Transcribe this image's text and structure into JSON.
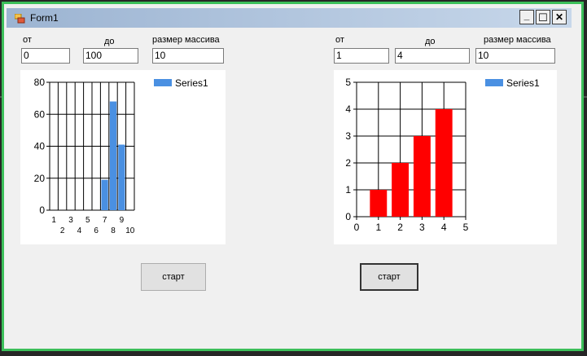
{
  "window": {
    "title": "Form1",
    "minimize_glyph": "_",
    "maximize_glyph": "☐",
    "close_glyph": "✕"
  },
  "left": {
    "from_label": "от",
    "to_label": "до",
    "size_label": "размер массива",
    "from_value": "0",
    "to_value": "100",
    "size_value": "10",
    "start_label": "старт"
  },
  "right": {
    "from_label": "от",
    "to_label": "до",
    "size_label": "размер массива",
    "from_value": "1",
    "to_value": "4",
    "size_value": "10",
    "start_label": "старт"
  },
  "chart_data": [
    {
      "type": "bar",
      "series": [
        {
          "name": "Series1",
          "color": "#4a90e2",
          "points": [
            {
              "x": 7,
              "y": 19
            },
            {
              "x": 8,
              "y": 68
            },
            {
              "x": 9,
              "y": 41
            }
          ]
        }
      ],
      "xlim": [
        1,
        10
      ],
      "ylim": [
        0,
        80
      ],
      "x_ticks_odd": [
        "1",
        "3",
        "5",
        "7",
        "9"
      ],
      "x_ticks_even": [
        "2",
        "4",
        "6",
        "8",
        "10"
      ],
      "y_ticks": [
        "0",
        "20",
        "40",
        "60",
        "80"
      ],
      "legend": "top-right",
      "grid": true
    },
    {
      "type": "bar",
      "series": [
        {
          "name": "Series1",
          "color": "#ff0000",
          "legend_color": "#4a90e2",
          "points": [
            {
              "x": 1,
              "y": 1
            },
            {
              "x": 2,
              "y": 2
            },
            {
              "x": 3,
              "y": 3
            },
            {
              "x": 4,
              "y": 4
            }
          ]
        }
      ],
      "xlim": [
        0,
        5
      ],
      "ylim": [
        0,
        5
      ],
      "x_ticks": [
        "0",
        "1",
        "2",
        "3",
        "4",
        "5"
      ],
      "y_ticks": [
        "0",
        "1",
        "2",
        "3",
        "4",
        "5"
      ],
      "legend": "top-right",
      "grid": true
    }
  ]
}
